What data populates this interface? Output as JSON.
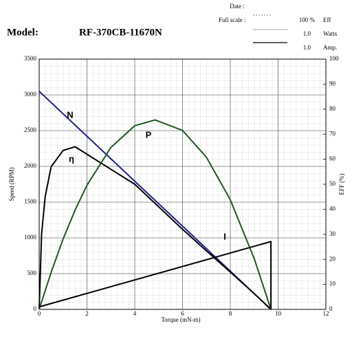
{
  "header": {
    "date_label": "Date :",
    "full_scale_label": "Full scale :",
    "model_label": "Model:",
    "model": "RF-370CB-11670N",
    "scales": [
      {
        "value": "100 %",
        "unit": "Eff"
      },
      {
        "value": "1.0",
        "unit": "Watts"
      },
      {
        "value": "1.0",
        "unit": "Amp."
      }
    ]
  },
  "chart_data": {
    "type": "line",
    "xlabel": "Torque (mN-m)",
    "ylabel": "Speed (RPM)",
    "y2label": "EFF (%)",
    "xlim": [
      0,
      12
    ],
    "xticks": [
      0,
      2,
      4,
      6,
      8,
      10,
      12
    ],
    "ylim": [
      0,
      3500
    ],
    "yticks": [
      0,
      500,
      1000,
      1500,
      2000,
      2500,
      3000,
      3500
    ],
    "y2lim": [
      0,
      100
    ],
    "y2ticks": [
      0,
      10,
      20,
      30,
      40,
      50,
      60,
      70,
      80,
      90,
      100
    ],
    "grid": true,
    "series": [
      {
        "name": "N",
        "color": "#1c1c8a",
        "x": [
          0,
          9.7
        ],
        "values": [
          3050,
          0
        ]
      },
      {
        "name": "η",
        "color": "#000000",
        "axis": "y2",
        "x": [
          0,
          0.1,
          0.25,
          0.5,
          1,
          1.5,
          2,
          3,
          4,
          5,
          6,
          7,
          8,
          9,
          9.7
        ],
        "values": [
          0,
          30,
          45,
          57,
          63.5,
          65,
          62,
          56,
          50,
          41,
          32,
          23.4,
          14.9,
          6.3,
          0
        ]
      },
      {
        "name": "P",
        "color": "#1e561e",
        "axis": "y2",
        "x": [
          0,
          0.5,
          1,
          1.5,
          2,
          3,
          4,
          4.85,
          6,
          7,
          8,
          9,
          9.7
        ],
        "values": [
          0,
          14.8,
          28.1,
          39.6,
          49.6,
          64.7,
          73.4,
          75.7,
          71.5,
          60.8,
          43.8,
          20.3,
          0
        ]
      },
      {
        "name": "I",
        "color": "#000000",
        "axis": "y2",
        "x": [
          0,
          9.7,
          9.7
        ],
        "values": [
          1,
          27.1,
          0
        ]
      }
    ]
  }
}
